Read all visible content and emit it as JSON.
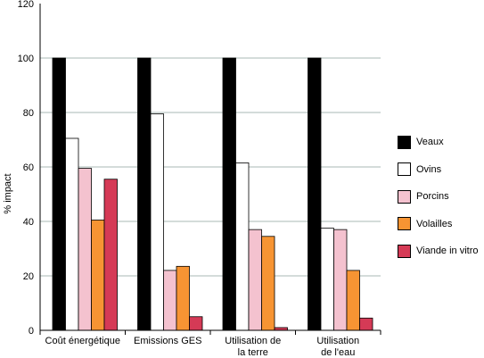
{
  "chart_data": {
    "type": "bar",
    "title": "",
    "xlabel": "",
    "ylabel": "% impact",
    "ylim": [
      0,
      120
    ],
    "yticks": [
      0,
      20,
      40,
      60,
      80,
      100,
      120
    ],
    "grid": "horizontal",
    "legend_position": "right",
    "categories": [
      [
        "Coût énergétique"
      ],
      [
        "Emissions GES"
      ],
      [
        "Utilisation de",
        "la terre"
      ],
      [
        "Utilisation",
        "de l'eau"
      ]
    ],
    "series": [
      {
        "name": "Veaux",
        "color": "#000000",
        "values": [
          100,
          100,
          100,
          100
        ]
      },
      {
        "name": "Ovins",
        "color": "#ffffff",
        "values": [
          70.5,
          79.5,
          61.5,
          37.5
        ]
      },
      {
        "name": "Porcins",
        "color": "#f4c2cf",
        "values": [
          59.5,
          22,
          37,
          37
        ]
      },
      {
        "name": "Volailles",
        "color": "#f79433",
        "values": [
          40.5,
          23.5,
          34.5,
          22
        ]
      },
      {
        "name": "Viande in vitro",
        "color": "#d53a56",
        "values": [
          55.5,
          5,
          1,
          4.5
        ]
      }
    ]
  }
}
